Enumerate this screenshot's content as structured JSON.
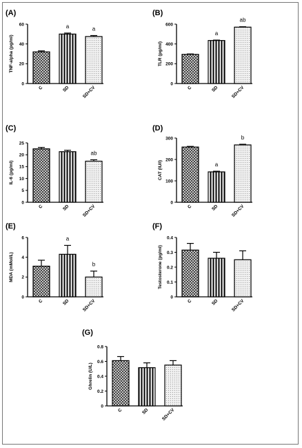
{
  "chart_data": [
    {
      "type": "bar",
      "panel": "(A)",
      "ylabel": "TNF-alpha (pg/ml)",
      "categories": [
        "C",
        "SD",
        "SD+CV"
      ],
      "values": [
        32,
        50,
        47.5
      ],
      "errors": [
        1,
        1,
        1
      ],
      "annotations": [
        "",
        "a",
        "a"
      ],
      "ylim": [
        0,
        60
      ],
      "yticks": [
        0,
        20,
        40,
        60
      ]
    },
    {
      "type": "bar",
      "panel": "(B)",
      "ylabel": "TLR (pg/ml)",
      "categories": [
        "C",
        "SD",
        "SD+CV"
      ],
      "values": [
        295,
        435,
        570
      ],
      "errors": [
        4,
        4,
        4
      ],
      "annotations": [
        "",
        "a",
        "ab"
      ],
      "ylim": [
        0,
        600
      ],
      "yticks": [
        0,
        200,
        400,
        600
      ]
    },
    {
      "type": "bar",
      "panel": "(C)",
      "ylabel": "IL-6 (pg/ml)",
      "categories": [
        "C",
        "SD",
        "SD+CV"
      ],
      "values": [
        22.5,
        21.3,
        17.3
      ],
      "errors": [
        0.6,
        0.6,
        0.6
      ],
      "annotations": [
        "",
        "",
        "ab"
      ],
      "ylim": [
        0,
        25
      ],
      "yticks": [
        0,
        5,
        10,
        15,
        20,
        25
      ]
    },
    {
      "type": "bar",
      "panel": "(D)",
      "ylabel": "CAT (IU/l)",
      "categories": [
        "C",
        "SD",
        "SD+CV"
      ],
      "values": [
        258,
        142,
        268
      ],
      "errors": [
        3,
        3,
        3
      ],
      "annotations": [
        "",
        "a",
        "b"
      ],
      "ylim": [
        0,
        300
      ],
      "yticks": [
        0,
        100,
        200,
        300
      ]
    },
    {
      "type": "bar",
      "panel": "(E)",
      "ylabel": "MDA (mMol/L)",
      "categories": [
        "C",
        "SD",
        "SD+CV"
      ],
      "values": [
        3.1,
        4.3,
        2.0
      ],
      "errors": [
        0.6,
        0.9,
        0.6
      ],
      "annotations": [
        "",
        "a",
        "b"
      ],
      "ylim": [
        0,
        6
      ],
      "yticks": [
        0,
        2,
        4,
        6
      ]
    },
    {
      "type": "bar",
      "panel": "(F)",
      "ylabel": "Testosterone (pg/ml)",
      "categories": [
        "C",
        "SD",
        "SD+CV"
      ],
      "values": [
        0.315,
        0.26,
        0.25
      ],
      "errors": [
        0.045,
        0.04,
        0.06
      ],
      "annotations": [
        "",
        "",
        ""
      ],
      "ylim": [
        0,
        0.4
      ],
      "yticks": [
        0,
        0.1,
        0.2,
        0.3,
        0.4
      ]
    },
    {
      "type": "bar",
      "panel": "(G)",
      "ylabel": "Ghrelin (U/L)",
      "categories": [
        "C",
        "SD",
        "SD+CV"
      ],
      "values": [
        0.61,
        0.515,
        0.55
      ],
      "errors": [
        0.055,
        0.065,
        0.06
      ],
      "annotations": [
        "",
        "",
        ""
      ],
      "ylim": [
        0,
        0.8
      ],
      "yticks": [
        0,
        0.2,
        0.4,
        0.6,
        0.8
      ]
    }
  ]
}
